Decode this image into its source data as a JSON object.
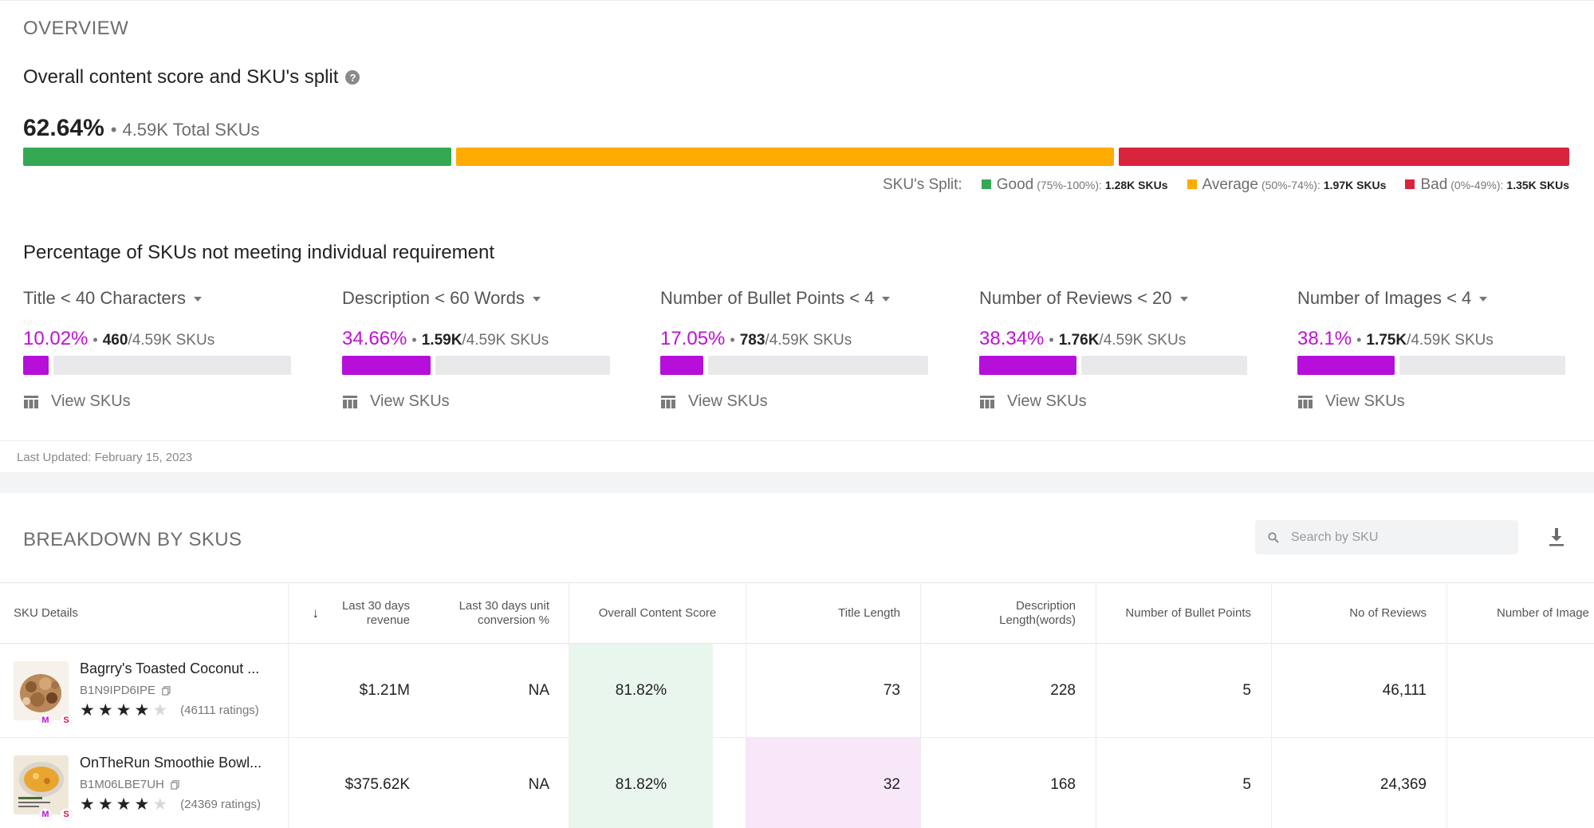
{
  "overview": {
    "section_label": "OVERVIEW",
    "score_title": "Overall content score and SKU's split",
    "help_glyph": "?",
    "score_pct": "62.64%",
    "separator": "•",
    "total_skus": "4.59K Total SKUs",
    "split": {
      "label": "SKU's Split:",
      "segments": [
        {
          "name": "Good",
          "range": "(75%-100%):",
          "count": "1.28K SKUs",
          "share": 0.279,
          "color": "#34a853"
        },
        {
          "name": "Average",
          "range": "(50%-74%):",
          "count": "1.97K SKUs",
          "share": 0.429,
          "color": "#ffab00"
        },
        {
          "name": "Bad",
          "range": "(0%-49%):",
          "count": "1.35K SKUs",
          "share": 0.294,
          "color": "#d8243d"
        }
      ]
    },
    "requirements_title": "Percentage of SKUs not meeting individual requirement",
    "requirements": [
      {
        "name": "Title < 40 Characters",
        "pct": "10.02%",
        "num": "460",
        "den": "/4.59K SKUs",
        "fill": 0.1002,
        "view": "View SKUs"
      },
      {
        "name": "Description < 60 Words",
        "pct": "34.66%",
        "num": "1.59K",
        "den": "/4.59K SKUs",
        "fill": 0.3466,
        "view": "View SKUs"
      },
      {
        "name": "Number of Bullet Points < 4",
        "pct": "17.05%",
        "num": "783",
        "den": "/4.59K SKUs",
        "fill": 0.1705,
        "view": "View SKUs"
      },
      {
        "name": "Number of Reviews < 20",
        "pct": "38.34%",
        "num": "1.76K",
        "den": "/4.59K SKUs",
        "fill": 0.3834,
        "view": "View SKUs"
      },
      {
        "name": "Number of Images < 4",
        "pct": "38.1%",
        "num": "1.75K",
        "den": "/4.59K SKUs",
        "fill": 0.381,
        "view": "View SKUs"
      }
    ],
    "last_updated": "Last Updated: February 15, 2023"
  },
  "breakdown": {
    "section_label": "BREAKDOWN BY SKUS",
    "search_placeholder": "Search by SKU",
    "sort_glyph": "↓",
    "columns": {
      "sku_details": "SKU Details",
      "revenue": "Last 30 days revenue",
      "conversion": "Last 30 days unit conversion %",
      "content_score": "Overall Content Score",
      "title_length": "Title Length",
      "description_length": "Description Length(words)",
      "bullet_points": "Number of Bullet Points",
      "reviews": "No of Reviews",
      "images": "Number of Image"
    },
    "rows": [
      {
        "name": "Bagrry's Toasted Coconut ...",
        "sku": "B1N9IPD6IPE",
        "stars": 4,
        "ratings": "(46111 ratings)",
        "badge_m": "M",
        "badge_s": "S",
        "revenue": "$1.21M",
        "conversion": "NA",
        "content_score": "81.82%",
        "title_length": "73",
        "description_length": "228",
        "bullet_points": "5",
        "reviews": "46,111"
      },
      {
        "name": "OnTheRun Smoothie Bowl...",
        "sku": "B1M06LBE7UH",
        "stars": 4,
        "ratings": "(24369 ratings)",
        "badge_m": "M",
        "badge_s": "S",
        "revenue": "$375.62K",
        "conversion": "NA",
        "content_score": "81.82%",
        "title_length": "32",
        "description_length": "168",
        "bullet_points": "5",
        "reviews": "24,369"
      }
    ]
  },
  "colors": {
    "accent_purple": "#b60fd9",
    "good": "#34a853",
    "average": "#ffab00",
    "bad": "#d8243d",
    "score_highlight": "#e9f6ee",
    "warn_highlight": "#f8e6f9"
  }
}
